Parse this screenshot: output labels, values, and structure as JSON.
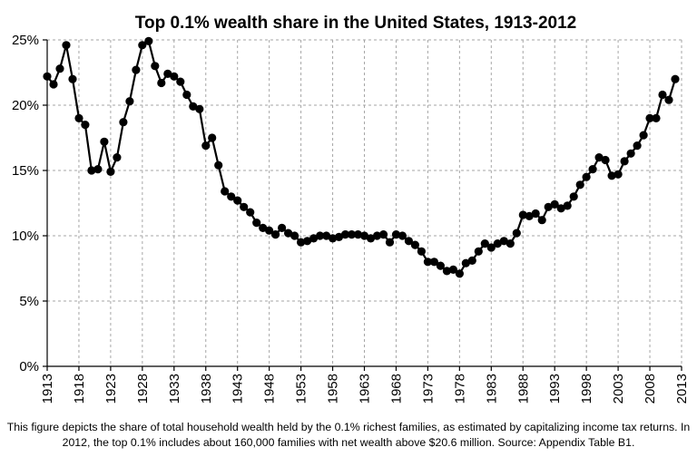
{
  "chart_data": {
    "type": "line",
    "title": "Top 0.1% wealth share in the United States, 1913-2012",
    "xlabel": "",
    "ylabel": "",
    "xlim": [
      1913,
      2013
    ],
    "ylim": [
      0,
      25
    ],
    "x_ticks": [
      "1913",
      "1918",
      "1923",
      "1928",
      "1933",
      "1938",
      "1943",
      "1948",
      "1953",
      "1958",
      "1963",
      "1968",
      "1973",
      "1978",
      "1983",
      "1988",
      "1993",
      "1998",
      "2003",
      "2008",
      "2013"
    ],
    "y_ticks": [
      "0%",
      "5%",
      "10%",
      "15%",
      "20%",
      "25%"
    ],
    "grid": true,
    "series": [
      {
        "x": [
          1913,
          1914,
          1915,
          1916,
          1917,
          1918,
          1919,
          1920,
          1921,
          1922,
          1923,
          1924,
          1925,
          1926,
          1927,
          1928,
          1929,
          1930,
          1931,
          1932,
          1933,
          1934,
          1935,
          1936,
          1937,
          1938,
          1939,
          1940,
          1941,
          1942,
          1943,
          1944,
          1945,
          1946,
          1947,
          1948,
          1949,
          1950,
          1951,
          1952,
          1953,
          1954,
          1955,
          1956,
          1957,
          1958,
          1959,
          1960,
          1961,
          1962,
          1963,
          1964,
          1965,
          1966,
          1967,
          1968,
          1969,
          1970,
          1971,
          1972,
          1973,
          1974,
          1975,
          1976,
          1977,
          1978,
          1979,
          1980,
          1981,
          1982,
          1983,
          1984,
          1985,
          1986,
          1987,
          1988,
          1989,
          1990,
          1991,
          1992,
          1993,
          1994,
          1995,
          1996,
          1997,
          1998,
          1999,
          2000,
          2001,
          2002,
          2003,
          2004,
          2005,
          2006,
          2007,
          2008,
          2009,
          2010,
          2011,
          2012
        ],
        "values": [
          22.2,
          21.6,
          22.8,
          24.6,
          22.0,
          19.0,
          18.5,
          15.0,
          15.1,
          17.2,
          14.9,
          16.0,
          18.7,
          20.3,
          22.7,
          24.6,
          24.9,
          23.0,
          21.7,
          22.4,
          22.2,
          21.8,
          20.8,
          19.9,
          19.7,
          16.9,
          17.5,
          15.4,
          13.4,
          13.0,
          12.7,
          12.2,
          11.8,
          11.0,
          10.6,
          10.4,
          10.1,
          10.6,
          10.2,
          10.0,
          9.5,
          9.6,
          9.8,
          10.0,
          10.0,
          9.8,
          9.9,
          10.1,
          10.1,
          10.1,
          10.0,
          9.8,
          10.0,
          10.1,
          9.5,
          10.1,
          10.0,
          9.6,
          9.3,
          8.8,
          8.0,
          8.0,
          7.7,
          7.3,
          7.4,
          7.1,
          7.9,
          8.1,
          8.8,
          9.4,
          9.1,
          9.4,
          9.6,
          9.4,
          10.2,
          11.6,
          11.5,
          11.7,
          11.2,
          12.2,
          12.4,
          12.1,
          12.3,
          13.0,
          13.9,
          14.5,
          15.1,
          16.0,
          15.8,
          14.6,
          14.7,
          15.7,
          16.3,
          16.9,
          17.7,
          19.0,
          19.0,
          20.8,
          20.4,
          22.0
        ]
      }
    ]
  },
  "caption": "This figure depicts the share of total household wealth held by the 0.1% richest families, as estimated by capitalizing income tax returns. In 2012, the top 0.1% includes about 160,000 families with net wealth above $20.6 million. Source: Appendix Table B1."
}
